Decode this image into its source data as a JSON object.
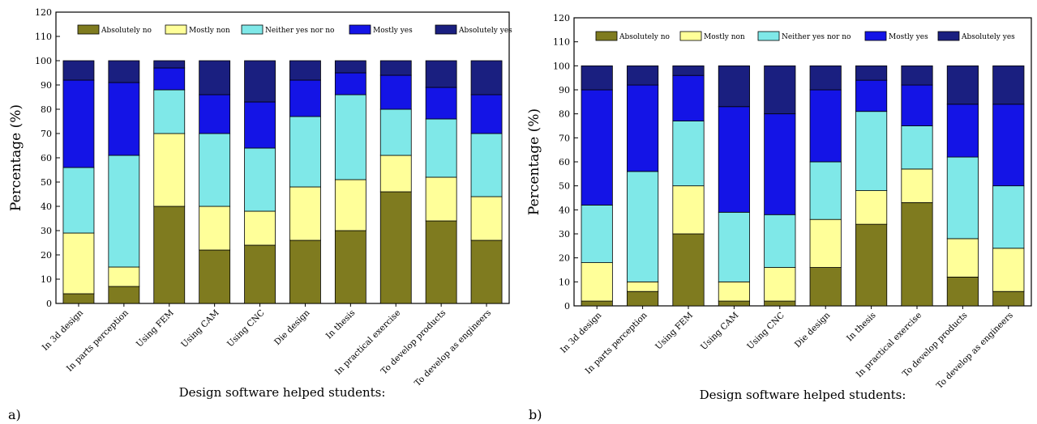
{
  "chart_data": [
    {
      "type": "bar",
      "stacked": true,
      "panel_label": "a)",
      "xlabel": "Design software helped students:",
      "ylabel": "Percentage (%)",
      "ylim": [
        0,
        120
      ],
      "yticks": [
        0,
        10,
        20,
        30,
        40,
        50,
        60,
        70,
        80,
        90,
        100,
        110,
        120
      ],
      "legend": "top",
      "grid": false,
      "categories": [
        "In 3d design",
        "In parts perception",
        "Using FEM",
        "Using CAM",
        "Using CNC",
        "Die design",
        "In  thesis",
        "In practical exercise",
        "To develop products",
        "To develop as engineers"
      ],
      "series": [
        {
          "name": "Absolutely no",
          "color": "#7f7b1f",
          "values": [
            4,
            7,
            40,
            22,
            24,
            26,
            30,
            46,
            34,
            26
          ]
        },
        {
          "name": "Mostly non",
          "color": "#ffff99",
          "values": [
            25,
            8,
            30,
            18,
            14,
            22,
            21,
            15,
            18,
            18
          ]
        },
        {
          "name": "Neither yes nor no",
          "color": "#7fe8e8",
          "values": [
            27,
            46,
            18,
            30,
            26,
            29,
            35,
            19,
            24,
            26
          ]
        },
        {
          "name": "Mostly yes",
          "color": "#1414e6",
          "values": [
            36,
            30,
            9,
            16,
            19,
            15,
            9,
            14,
            13,
            16
          ]
        },
        {
          "name": "Absolutely yes",
          "color": "#1a1f80",
          "values": [
            8,
            9,
            3,
            14,
            17,
            8,
            5,
            6,
            11,
            14
          ]
        }
      ]
    },
    {
      "type": "bar",
      "stacked": true,
      "panel_label": "b)",
      "xlabel": "Design software helped students:",
      "ylabel": "Percentage (%)",
      "ylim": [
        0,
        120
      ],
      "yticks": [
        0,
        10,
        20,
        30,
        40,
        50,
        60,
        70,
        80,
        90,
        100,
        110,
        120
      ],
      "legend": "top",
      "grid": false,
      "categories": [
        "In 3d design",
        "In parts perception",
        "Using FEM",
        "Using CAM",
        "Using CNC",
        "Die design",
        "In  thesis",
        "In practical exercise",
        "To develop products",
        "To develop as engineers"
      ],
      "series": [
        {
          "name": "Absolutely no",
          "color": "#7f7b1f",
          "values": [
            2,
            6,
            30,
            2,
            2,
            16,
            34,
            43,
            12,
            6
          ]
        },
        {
          "name": "Mostly non",
          "color": "#ffff99",
          "values": [
            16,
            4,
            20,
            8,
            14,
            20,
            14,
            14,
            16,
            18
          ]
        },
        {
          "name": "Neither yes nor no",
          "color": "#7fe8e8",
          "values": [
            24,
            46,
            27,
            29,
            22,
            24,
            33,
            18,
            34,
            26
          ]
        },
        {
          "name": "Mostly yes",
          "color": "#1414e6",
          "values": [
            48,
            36,
            19,
            44,
            42,
            30,
            13,
            17,
            22,
            34
          ]
        },
        {
          "name": "Absolutely yes",
          "color": "#1a1f80",
          "values": [
            10,
            8,
            4,
            17,
            20,
            10,
            6,
            8,
            16,
            16
          ]
        }
      ]
    }
  ]
}
